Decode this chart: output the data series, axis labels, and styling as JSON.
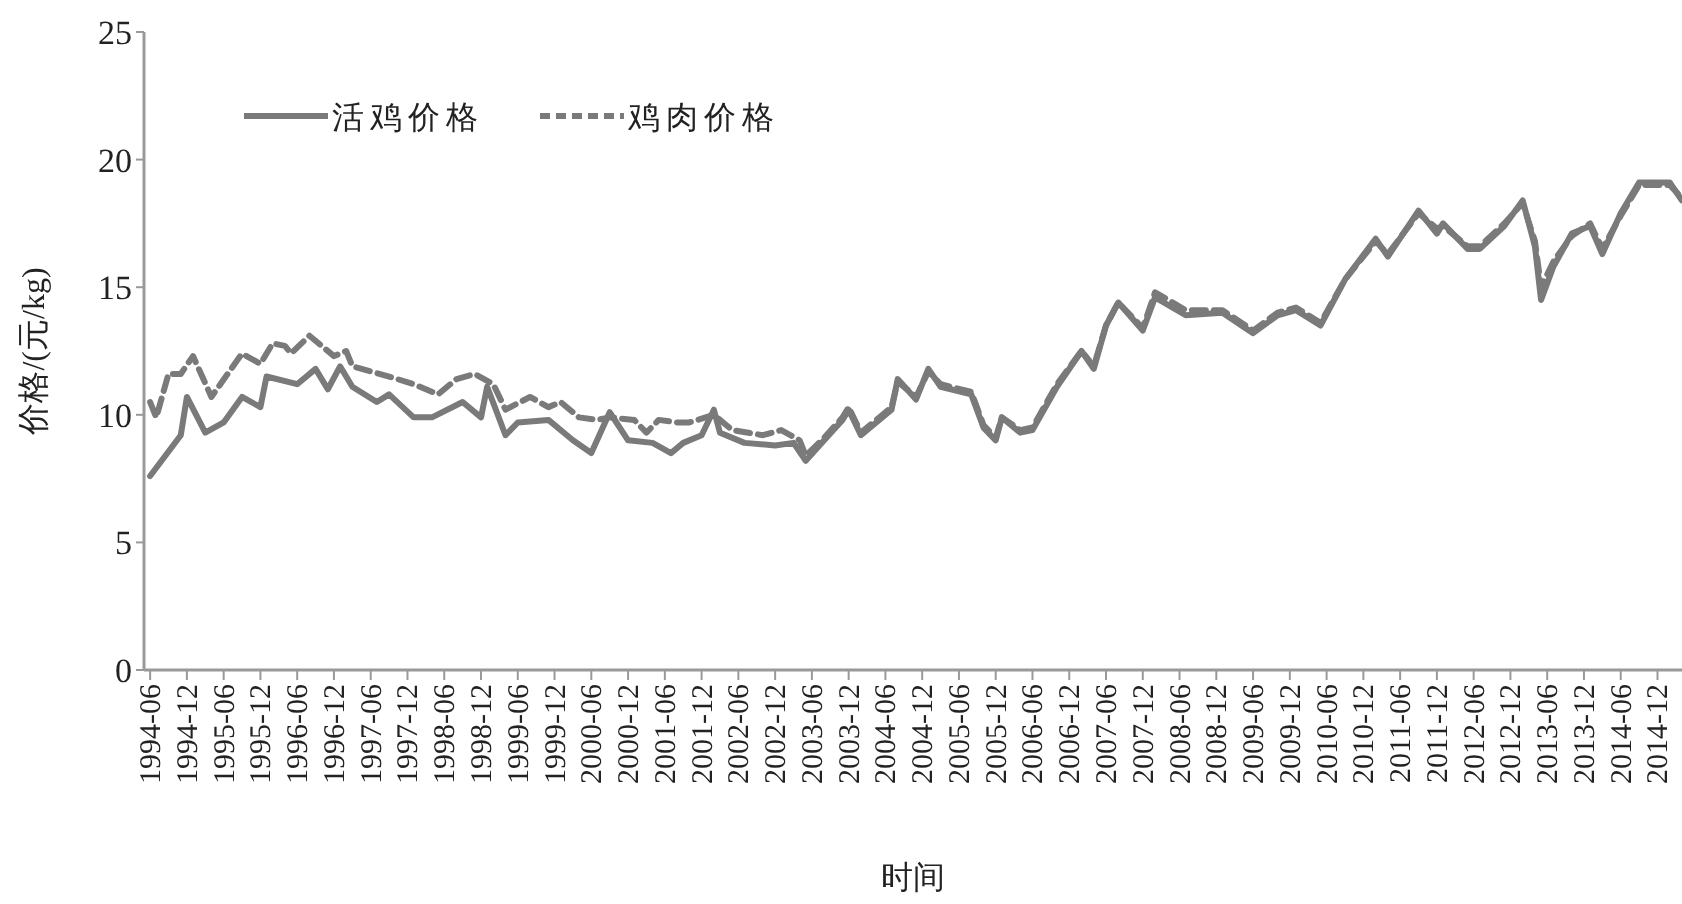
{
  "chart_data": {
    "type": "line",
    "xlabel": "时间",
    "ylabel": "价格/(元/kg)",
    "xlim": [
      "1994-05",
      "2015-04"
    ],
    "ylim": [
      0,
      25
    ],
    "yticks": [
      0,
      5,
      10,
      15,
      20,
      25
    ],
    "xticks": [
      "1994-06",
      "1994-12",
      "1995-06",
      "1995-12",
      "1996-06",
      "1996-12",
      "1997-06",
      "1997-12",
      "1998-06",
      "1998-12",
      "1999-06",
      "1999-12",
      "2000-06",
      "2000-12",
      "2001-06",
      "2001-12",
      "2002-06",
      "2002-12",
      "2003-06",
      "2003-12",
      "2004-06",
      "2004-12",
      "2005-06",
      "2005-12",
      "2006-06",
      "2006-12",
      "2007-06",
      "2007-12",
      "2008-06",
      "2008-12",
      "2009-06",
      "2009-12",
      "2010-06",
      "2010-12",
      "2011-06",
      "2011-12",
      "2012-06",
      "2012-12",
      "2013-06",
      "2013-12",
      "2014-06",
      "2014-12"
    ],
    "grid": false,
    "legend": "top left",
    "marker": "none",
    "series": [
      {
        "name": "活鸡价格",
        "color": "#7a7a7a",
        "line_style": "solid",
        "x": [
          "1994-06",
          "1994-11",
          "1994-12",
          "1995-03",
          "1995-06",
          "1995-09",
          "1995-12",
          "1996-01",
          "1996-06",
          "1996-09",
          "1996-11",
          "1997-01",
          "1997-03",
          "1997-07",
          "1997-09",
          "1998-01",
          "1998-04",
          "1998-09",
          "1998-12",
          "1999-01",
          "1999-04",
          "1999-06",
          "1999-11",
          "2000-03",
          "2000-06",
          "2000-09",
          "2000-12",
          "2001-04",
          "2001-07",
          "2001-09",
          "2001-12",
          "2002-02",
          "2002-03",
          "2002-07",
          "2002-12",
          "2003-03",
          "2003-05",
          "2003-08",
          "2003-11",
          "2003-12",
          "2004-02",
          "2004-07",
          "2004-08",
          "2004-11",
          "2005-01",
          "2005-03",
          "2005-08",
          "2005-10",
          "2005-12",
          "2006-01",
          "2006-04",
          "2006-06",
          "2006-10",
          "2007-02",
          "2007-04",
          "2007-06",
          "2007-08",
          "2007-12",
          "2008-02",
          "2008-07",
          "2009-01",
          "2009-06",
          "2009-10",
          "2010-01",
          "2010-05",
          "2010-09",
          "2011-02",
          "2011-04",
          "2011-09",
          "2011-12",
          "2012-01",
          "2012-05",
          "2012-07",
          "2012-11",
          "2013-02",
          "2013-04",
          "2013-05",
          "2013-07",
          "2013-10",
          "2014-01",
          "2014-03",
          "2014-06",
          "2014-09",
          "2015-02",
          "2015-04"
        ],
        "values": [
          7.6,
          9.2,
          10.7,
          9.3,
          9.7,
          10.7,
          10.3,
          11.5,
          11.2,
          11.8,
          11.0,
          11.9,
          11.1,
          10.5,
          10.8,
          9.9,
          9.9,
          10.5,
          9.9,
          11.1,
          9.2,
          9.7,
          9.8,
          9.0,
          8.5,
          10.1,
          9.0,
          8.9,
          8.5,
          8.9,
          9.2,
          10.2,
          9.3,
          8.9,
          8.8,
          8.9,
          8.2,
          9.0,
          9.8,
          10.2,
          9.2,
          10.2,
          11.4,
          10.6,
          11.8,
          11.1,
          10.8,
          9.5,
          9.0,
          9.9,
          9.3,
          9.4,
          11.1,
          12.5,
          11.8,
          13.5,
          14.4,
          13.3,
          14.6,
          13.9,
          14.0,
          13.2,
          13.9,
          14.1,
          13.5,
          15.3,
          16.9,
          16.2,
          18.0,
          17.1,
          17.5,
          16.5,
          16.5,
          17.4,
          18.4,
          16.6,
          14.5,
          15.8,
          17.1,
          17.4,
          16.3,
          17.9,
          19.1,
          19.1,
          18.4
        ]
      },
      {
        "name": "鸡肉价格",
        "color": "#7a7a7a",
        "line_style": "dashed",
        "x": [
          "1994-06",
          "1994-07",
          "1994-09",
          "1994-11",
          "1995-01",
          "1995-04",
          "1995-09",
          "1995-12",
          "1996-02",
          "1996-04",
          "1996-05",
          "1996-08",
          "1996-10",
          "1996-12",
          "1997-02",
          "1997-03",
          "1997-09",
          "1998-01",
          "1998-05",
          "1998-08",
          "1998-11",
          "1999-02",
          "1999-04",
          "1999-08",
          "1999-11",
          "2000-01",
          "2000-04",
          "2000-07",
          "2000-09",
          "2001-01",
          "2001-03",
          "2001-05",
          "2001-08",
          "2001-10",
          "2002-02",
          "2002-05",
          "2002-10",
          "2003-01",
          "2003-04",
          "2003-05",
          "2003-08",
          "2003-11",
          "2003-12",
          "2004-02",
          "2004-07",
          "2004-08",
          "2004-11",
          "2005-01",
          "2005-03",
          "2005-08",
          "2005-10",
          "2005-12",
          "2006-01",
          "2006-04",
          "2006-06",
          "2006-10",
          "2007-02",
          "2007-04",
          "2007-06",
          "2007-08",
          "2007-12",
          "2008-02",
          "2008-07",
          "2009-01",
          "2009-06",
          "2009-10",
          "2010-01",
          "2010-05",
          "2010-09",
          "2011-02",
          "2011-04",
          "2011-09",
          "2011-12",
          "2012-01",
          "2012-05",
          "2012-07",
          "2012-11",
          "2013-02",
          "2013-04",
          "2013-05",
          "2013-07",
          "2013-10",
          "2014-01",
          "2014-03",
          "2014-06",
          "2014-09",
          "2015-02",
          "2015-04"
        ],
        "values": [
          10.5,
          9.9,
          11.6,
          11.6,
          12.3,
          10.7,
          12.4,
          12.0,
          12.8,
          12.7,
          12.4,
          13.1,
          12.7,
          12.3,
          12.5,
          11.9,
          11.5,
          11.2,
          10.8,
          11.4,
          11.6,
          11.2,
          10.2,
          10.7,
          10.3,
          10.5,
          9.9,
          9.8,
          9.9,
          9.8,
          9.3,
          9.8,
          9.7,
          9.7,
          10.0,
          9.4,
          9.2,
          9.4,
          9.0,
          8.4,
          9.1,
          9.9,
          10.3,
          9.3,
          10.3,
          11.3,
          10.7,
          11.7,
          11.2,
          10.9,
          9.6,
          9.1,
          9.9,
          9.4,
          9.5,
          11.2,
          12.5,
          11.9,
          13.5,
          14.4,
          13.4,
          14.8,
          14.1,
          14.1,
          13.3,
          14.0,
          14.2,
          13.6,
          15.3,
          16.8,
          16.3,
          17.9,
          17.3,
          17.4,
          16.6,
          16.6,
          17.5,
          18.3,
          16.8,
          15.0,
          16.0,
          17.0,
          17.5,
          16.5,
          17.8,
          19.0,
          19.0,
          18.5
        ]
      }
    ]
  }
}
